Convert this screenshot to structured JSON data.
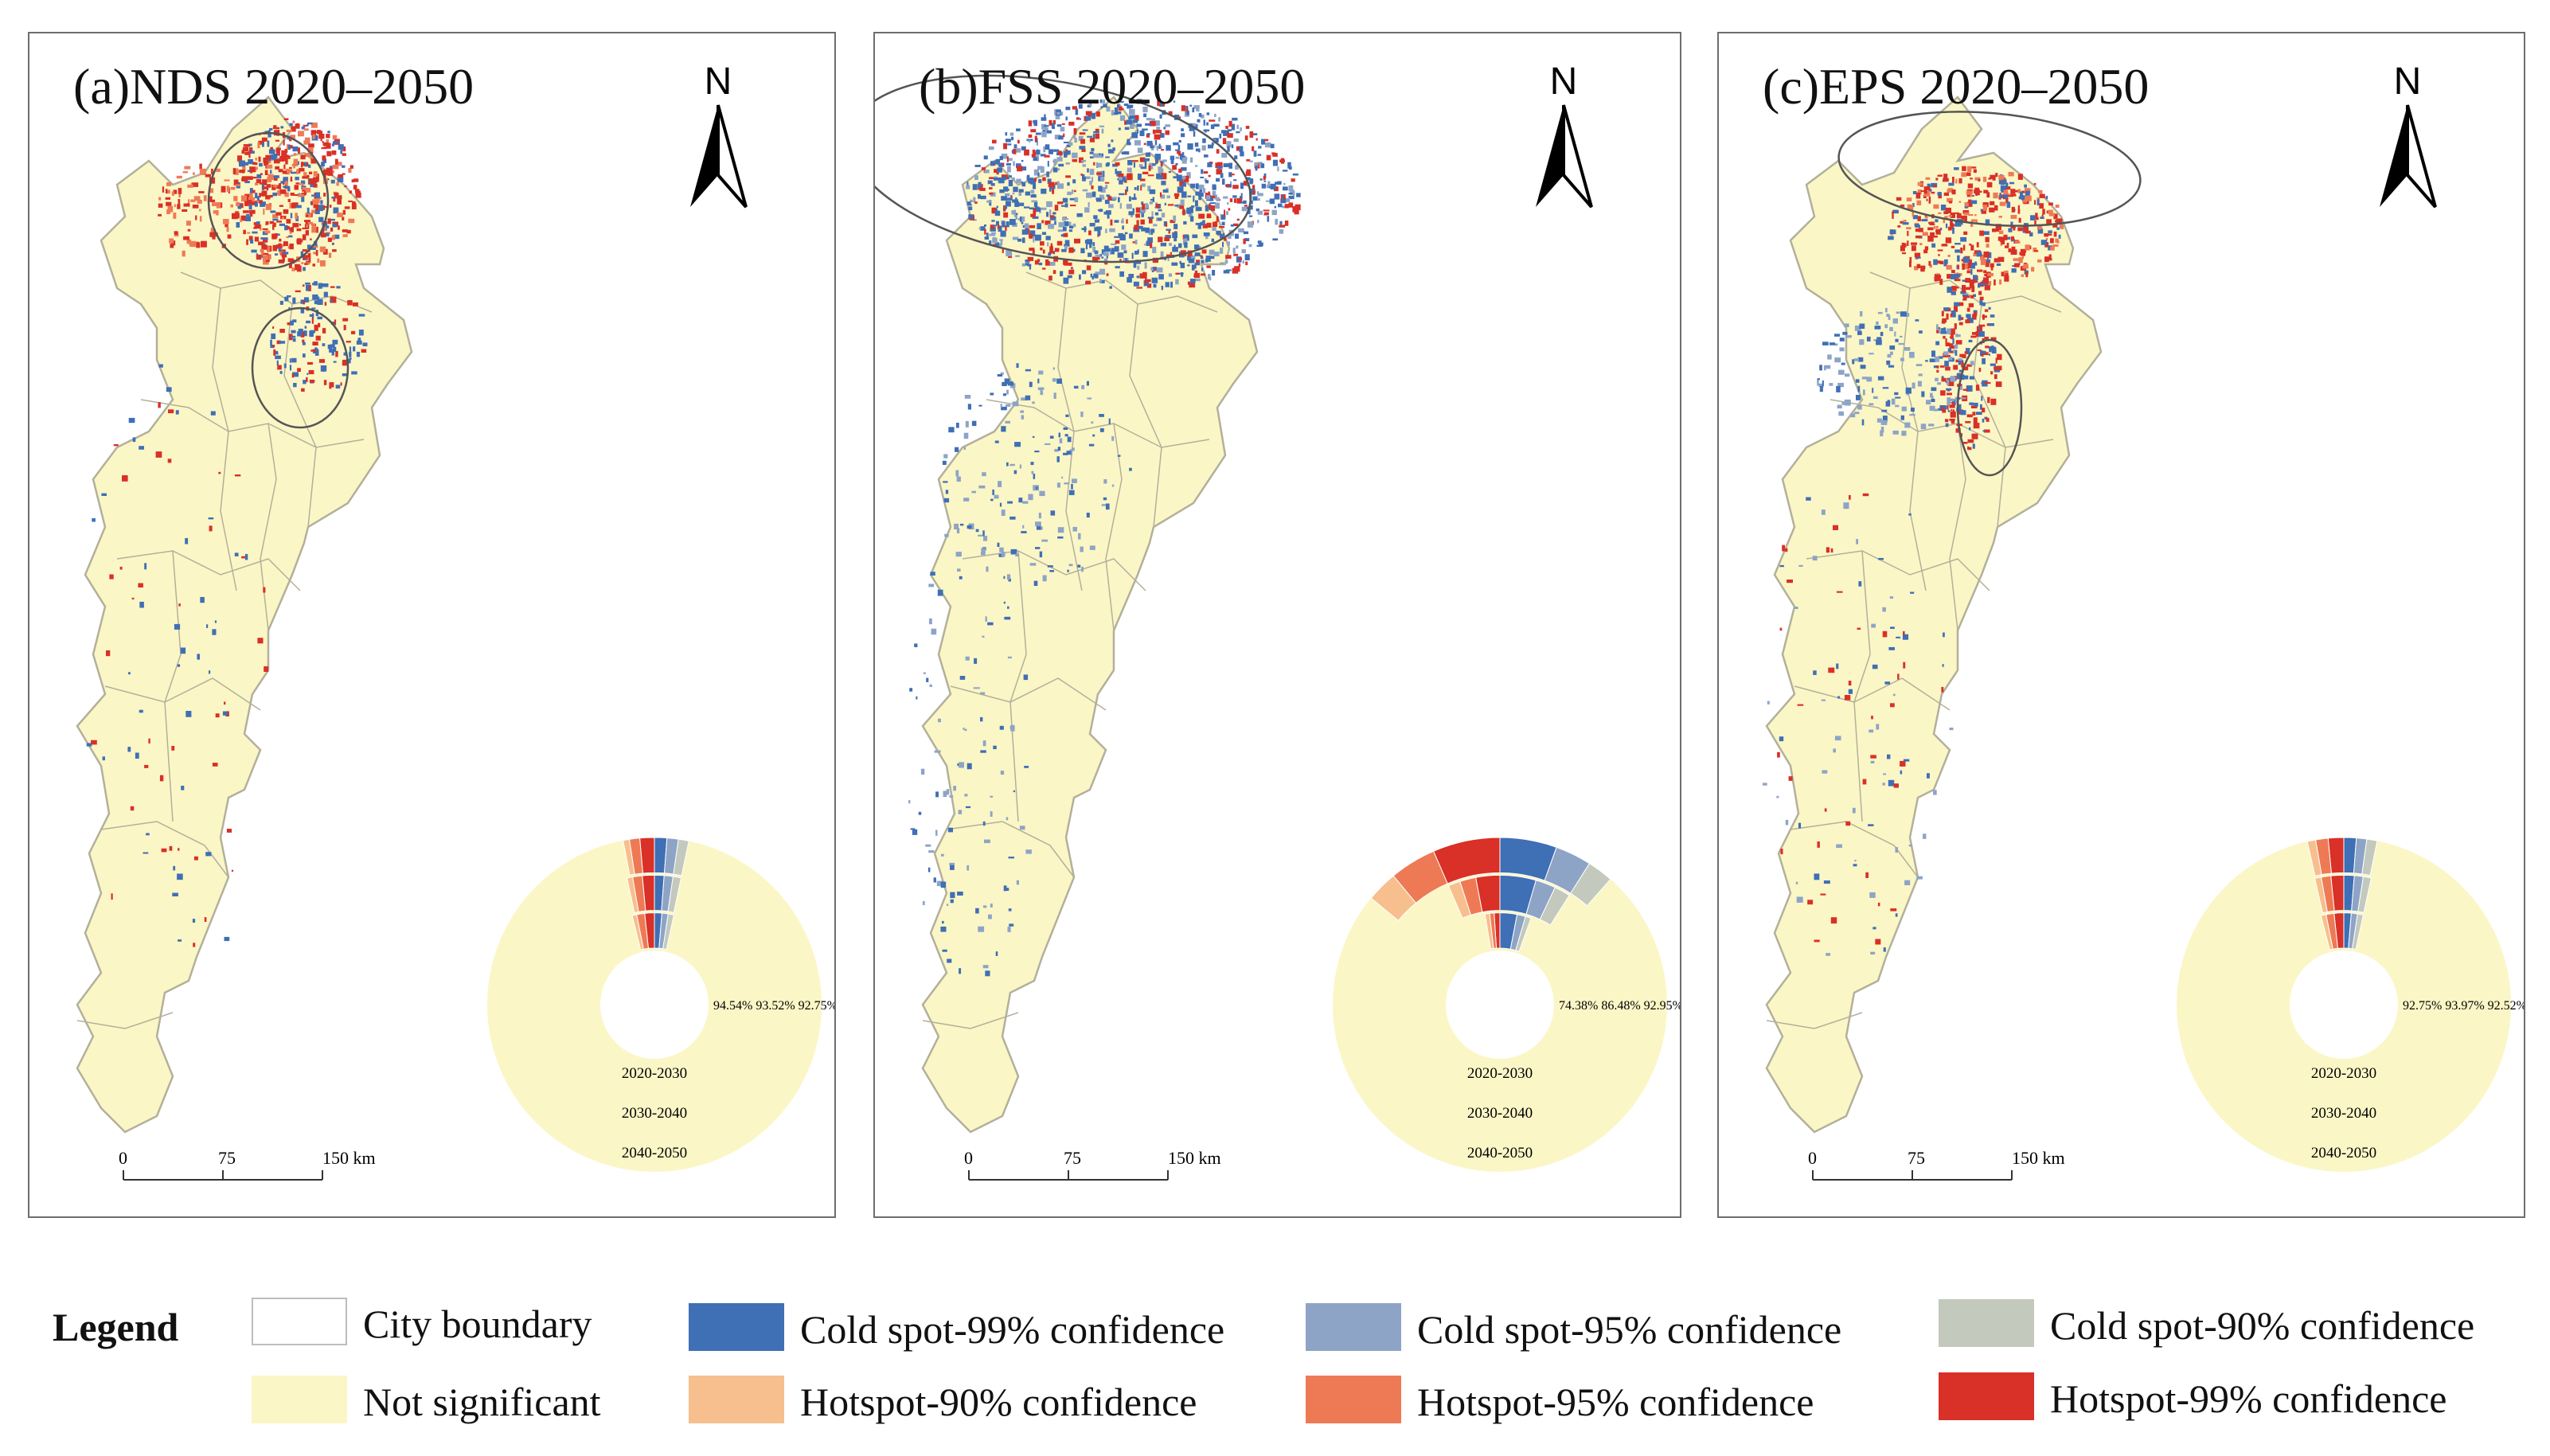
{
  "colors": {
    "map_fill": "#fbf6c6",
    "boundary": "#b3b09a",
    "cold99": "#3f6fb5",
    "cold95": "#8da4c6",
    "cold90": "#c3c9bd",
    "hot90": "#f7bf8d",
    "hot95": "#ee7a55",
    "hot99": "#d93027",
    "outline": "#6d6d6d"
  },
  "panels": [
    {
      "id": "a",
      "title": "(a)NDS 2020–2050",
      "north": "N",
      "scale": {
        "ticks": [
          "0",
          "75",
          "150 km"
        ]
      },
      "percentages": [
        "94.54%",
        "93.52%",
        "92.75%"
      ],
      "periods": [
        "2020-2030",
        "2030-2040",
        "2040-2050"
      ],
      "ring_wedges": [
        {
          "cold99": 1.2,
          "cold95": 1.1,
          "cold90": 1.0,
          "hot90": 0.6,
          "hot95": 1.0,
          "hot99": 1.4
        },
        {
          "cold99": 1.2,
          "cold95": 1.1,
          "cold90": 1.0,
          "hot90": 0.7,
          "hot95": 1.2,
          "hot99": 1.5
        },
        {
          "cold99": 1.3,
          "cold95": 1.1,
          "cold90": 1.0,
          "hot90": 0.8,
          "hot95": 1.4,
          "hot99": 1.7
        }
      ]
    },
    {
      "id": "b",
      "title": "(b)FSS 2020–2050",
      "north": "N",
      "scale": {
        "ticks": [
          "0",
          "75",
          "150 km"
        ]
      },
      "percentages": [
        "74.38%",
        "86.48%",
        "92.95%"
      ],
      "periods": [
        "2020-2030",
        "2030-2040",
        "2040-2050"
      ],
      "ring_wedges": [
        {
          "cold99": 5.5,
          "cold95": 3.5,
          "cold90": 2.5,
          "hot90": 3.0,
          "hot95": 4.5,
          "hot99": 6.5
        },
        {
          "cold99": 4.5,
          "cold95": 2.5,
          "cold90": 2.0,
          "hot90": 1.5,
          "hot95": 2.0,
          "hot99": 3.0
        },
        {
          "cold99": 3.0,
          "cold95": 1.5,
          "cold90": 1.0,
          "hot90": 0.8,
          "hot95": 0.8,
          "hot99": 1.0
        }
      ]
    },
    {
      "id": "c",
      "title": "(c)EPS 2020–2050",
      "north": "N",
      "scale": {
        "ticks": [
          "0",
          "75",
          "150 km"
        ]
      },
      "percentages": [
        "92.75%",
        "93.97%",
        "92.52%"
      ],
      "periods": [
        "2020-2030",
        "2030-2040",
        "2040-2050"
      ],
      "ring_wedges": [
        {
          "cold99": 1.2,
          "cold95": 1.0,
          "cold90": 1.0,
          "hot90": 0.8,
          "hot95": 1.2,
          "hot99": 1.5
        },
        {
          "cold99": 1.3,
          "cold95": 1.1,
          "cold90": 1.0,
          "hot90": 0.8,
          "hot95": 1.2,
          "hot99": 1.6
        },
        {
          "cold99": 1.3,
          "cold95": 1.1,
          "cold90": 1.0,
          "hot90": 0.9,
          "hot95": 1.4,
          "hot99": 1.7
        }
      ]
    }
  ],
  "legend": {
    "title": "Legend",
    "items": [
      {
        "key": "boundary",
        "label": "City boundary"
      },
      {
        "key": "cold99",
        "label": "Cold spot-99% confidence"
      },
      {
        "key": "cold95",
        "label": "Cold spot-95% confidence"
      },
      {
        "key": "cold90",
        "label": "Cold spot-90% confidence"
      },
      {
        "key": "not_significant",
        "label": "Not significant"
      },
      {
        "key": "hot90",
        "label": "Hotspot-90% confidence"
      },
      {
        "key": "hot95",
        "label": "Hotspot-95% confidence"
      },
      {
        "key": "hot99",
        "label": "Hotspot-99% confidence"
      }
    ]
  }
}
